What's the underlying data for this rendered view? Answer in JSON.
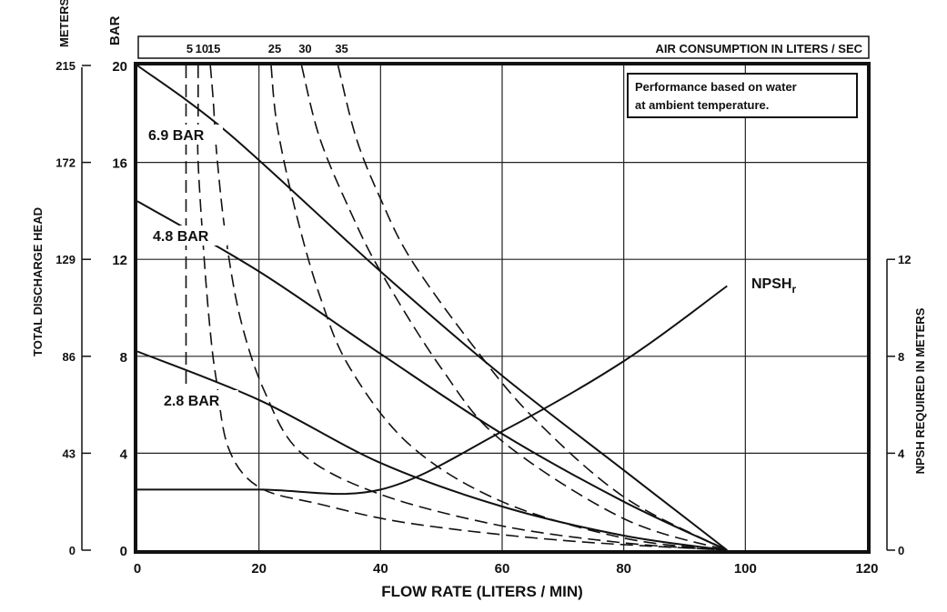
{
  "chart_data": {
    "type": "line",
    "xlabel": "FLOW RATE (LITERS / MIN)",
    "xlim": [
      0,
      120
    ],
    "x_ticks": [
      "0",
      "20",
      "40",
      "60",
      "80",
      "100",
      "120"
    ],
    "ylabel_left": "TOTAL DISCHARGE HEAD",
    "ylim_bar": [
      0,
      20
    ],
    "bar_unit": "BAR",
    "bar_ticks": [
      "0",
      "4",
      "8",
      "12",
      "16",
      "20"
    ],
    "meters_unit": "METERS",
    "meters_ticks": [
      "0",
      "43",
      "86",
      "129",
      "172",
      "215"
    ],
    "ylabel_right": "NPSH REQUIRED IN METERS",
    "npsh_ticks": [
      "0",
      "4",
      "8",
      "12"
    ],
    "npsh_ylim": [
      0,
      12
    ],
    "air_header": "AIR CONSUMPTION IN LITERS / SEC",
    "note_line1": "Performance based on water",
    "note_line2": "at ambient temperature.",
    "grid": true,
    "pressure_curves": [
      {
        "name": "6.9 BAR",
        "points": [
          [
            0,
            20
          ],
          [
            15,
            17.2
          ],
          [
            40,
            11.5
          ],
          [
            60,
            7.2
          ],
          [
            80,
            3.3
          ],
          [
            97,
            0
          ]
        ]
      },
      {
        "name": "4.8 BAR",
        "points": [
          [
            0,
            14.4
          ],
          [
            20,
            11.5
          ],
          [
            40,
            8.1
          ],
          [
            60,
            4.8
          ],
          [
            80,
            2
          ],
          [
            97,
            0
          ]
        ]
      },
      {
        "name": "2.8 BAR",
        "points": [
          [
            0,
            8.2
          ],
          [
            20,
            6.2
          ],
          [
            40,
            3.6
          ],
          [
            60,
            1.8
          ],
          [
            80,
            0.6
          ],
          [
            97,
            0
          ]
        ]
      }
    ],
    "npsh_curve": {
      "name": "NPSH",
      "name_sub": "r",
      "points": [
        [
          0,
          2.5
        ],
        [
          20,
          2.5
        ],
        [
          40,
          2.5
        ],
        [
          60,
          4.9
        ],
        [
          80,
          7.8
        ],
        [
          97,
          10.9
        ]
      ]
    },
    "air_curves": [
      {
        "name": "5",
        "points": [
          [
            8,
            20
          ],
          [
            8,
            16
          ],
          [
            8,
            12
          ],
          [
            8,
            8
          ],
          [
            8,
            6.4
          ]
        ]
      },
      {
        "name": "10",
        "points": [
          [
            10,
            20
          ],
          [
            10,
            18
          ],
          [
            10,
            16
          ],
          [
            11,
            12
          ],
          [
            12,
            9
          ],
          [
            13,
            7
          ],
          [
            15,
            4.2
          ],
          [
            20,
            2.6
          ],
          [
            30,
            1.9
          ],
          [
            45,
            1.1
          ],
          [
            70,
            0.4
          ],
          [
            97,
            0
          ]
        ]
      },
      {
        "name": "15",
        "points": [
          [
            12,
            20
          ],
          [
            12.5,
            18.5
          ],
          [
            13,
            16.5
          ],
          [
            14.5,
            13
          ],
          [
            17,
            9.5
          ],
          [
            21,
            6.5
          ],
          [
            27,
            4
          ],
          [
            40,
            2.3
          ],
          [
            60,
            1
          ],
          [
            80,
            0.3
          ],
          [
            97,
            0
          ]
        ]
      },
      {
        "name": "25",
        "points": [
          [
            22,
            20
          ],
          [
            23,
            17.5
          ],
          [
            26,
            14
          ],
          [
            30,
            10.5
          ],
          [
            35,
            7.5
          ],
          [
            45,
            4.3
          ],
          [
            60,
            2
          ],
          [
            80,
            0.5
          ],
          [
            97,
            0
          ]
        ]
      },
      {
        "name": "30",
        "points": [
          [
            27,
            20
          ],
          [
            30,
            17
          ],
          [
            35,
            14
          ],
          [
            40,
            11.5
          ],
          [
            50,
            7.5
          ],
          [
            60,
            4.5
          ],
          [
            80,
            1.3
          ],
          [
            97,
            0
          ]
        ]
      },
      {
        "name": "35",
        "points": [
          [
            33,
            20
          ],
          [
            36,
            17
          ],
          [
            40,
            14.5
          ],
          [
            45,
            12
          ],
          [
            55,
            8.5
          ],
          [
            65,
            5.5
          ],
          [
            80,
            2.2
          ],
          [
            97,
            0
          ]
        ]
      }
    ],
    "annotations": [
      "6.9 BAR",
      "4.8 BAR",
      "2.8 BAR",
      "NPSH"
    ]
  }
}
